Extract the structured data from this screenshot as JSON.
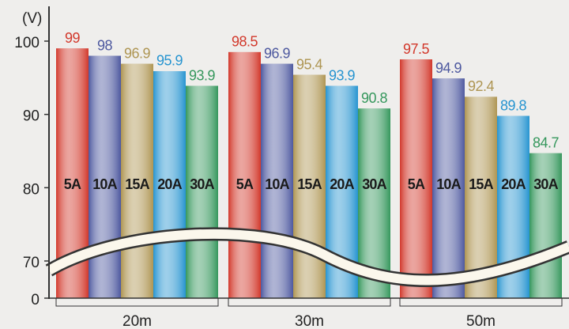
{
  "chart_data": {
    "type": "bar",
    "y_label": "(V)",
    "categories": [
      "20m",
      "30m",
      "50m"
    ],
    "series": [
      {
        "name": "5A",
        "color": "#d2382b",
        "values": [
          99,
          98.5,
          97.5
        ]
      },
      {
        "name": "10A",
        "color": "#4d589f",
        "values": [
          98,
          96.9,
          94.9
        ]
      },
      {
        "name": "15A",
        "color": "#ae9552",
        "values": [
          96.9,
          95.4,
          92.4
        ]
      },
      {
        "name": "20A",
        "color": "#2694d0",
        "values": [
          95.9,
          93.9,
          89.8
        ]
      },
      {
        "name": "30A",
        "color": "#35975c",
        "values": [
          93.9,
          90.8,
          84.7
        ]
      }
    ],
    "ylim": [
      0,
      100
    ],
    "y_break": [
      0,
      70
    ],
    "yticks": [
      0,
      70,
      80,
      90,
      100
    ]
  }
}
